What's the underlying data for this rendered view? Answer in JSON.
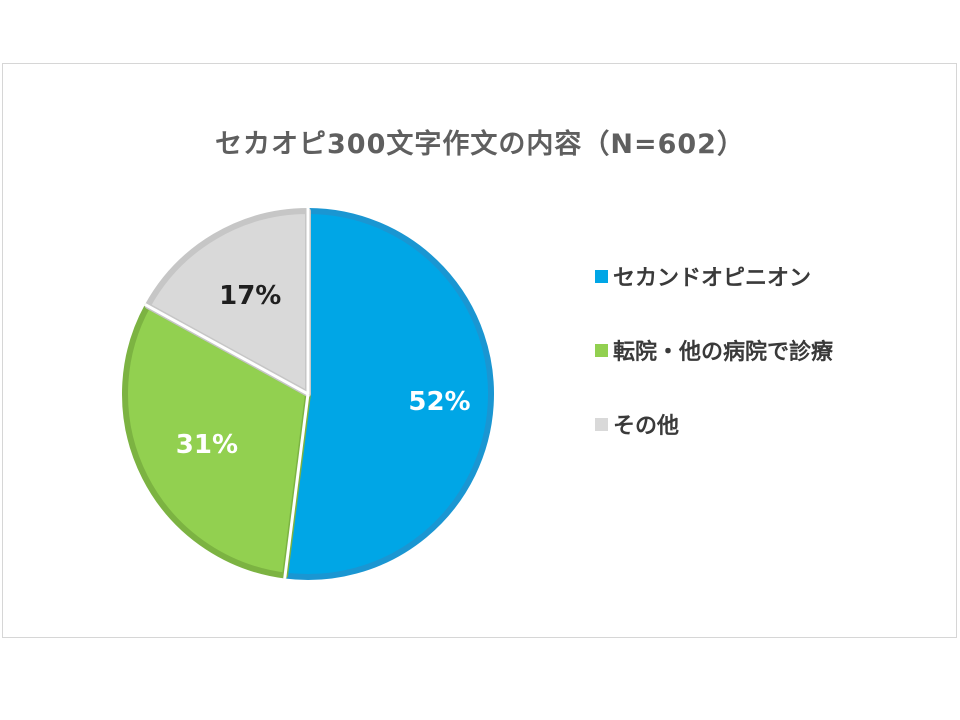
{
  "colors": {
    "blue": "#00a6e6",
    "blue_edge": "#1a96d2",
    "green": "#92d050",
    "green_edge": "#7cb342",
    "gray": "#d9d9d9",
    "gray_edge": "#c6c6c6",
    "label_dark": "#1f1f1f",
    "label_light": "#ffffff"
  },
  "chart_data": {
    "type": "pie",
    "title": "セカオピ300文字作文の内容（N=602）",
    "start_angle_deg": 0,
    "direction": "clockwise",
    "slices": [
      {
        "label": "セカンドオピニオン",
        "value": 52,
        "display": "52%",
        "color": "#00a6e6",
        "edge": "#1a96d2",
        "label_color": "#ffffff"
      },
      {
        "label": "転院・他の病院で診療",
        "value": 31,
        "display": "31%",
        "color": "#92d050",
        "edge": "#7cb342",
        "label_color": "#ffffff"
      },
      {
        "label": "その他",
        "value": 17,
        "display": "17%",
        "color": "#d9d9d9",
        "edge": "#c6c6c6",
        "label_color": "#1f1f1f"
      }
    ],
    "legend_position": "right"
  }
}
